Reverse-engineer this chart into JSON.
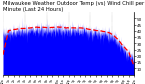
{
  "title": "Milwaukee Weather Outdoor Temp (vs) Wind Chill per Minute (Last 24 Hours)",
  "title_fontsize": 3.8,
  "bg_color": "#ffffff",
  "plot_bg_color": "#ffffff",
  "bar_color": "#0000ff",
  "line_color": "#ff0000",
  "grid_color": "#888888",
  "ylim": [
    5,
    55
  ],
  "yticks": [
    10,
    15,
    20,
    25,
    30,
    35,
    40,
    45,
    50
  ],
  "n_points": 1440,
  "seed": 42
}
